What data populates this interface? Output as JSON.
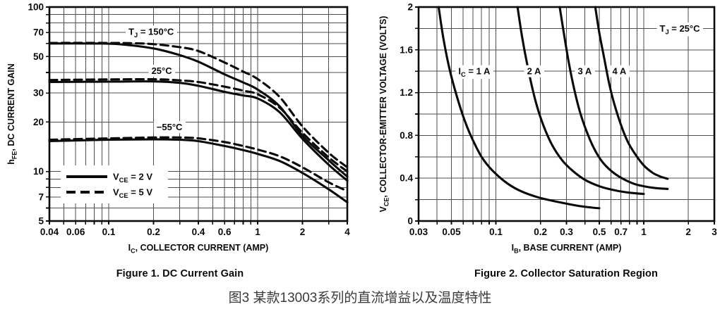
{
  "page": {
    "background": "#ffffff"
  },
  "colors": {
    "ink": "#0a0a0a",
    "grid": "#4d4d4d",
    "caption_text": "#3b3b3b",
    "label_bg": "#ffffff"
  },
  "captions": {
    "main": "图3 某款13003系列的直流增益以及温度特性"
  },
  "chart_data": [
    {
      "id": "fig1",
      "type": "line",
      "title": "Figure 1. DC Current Gain",
      "xlabel": "I_{C}, COLLECTOR CURRENT (AMP)",
      "ylabel": "h_{FE}, DC CURRENT GAIN",
      "x_scale": "log",
      "y_scale": "log",
      "xlim": [
        0.04,
        4
      ],
      "ylim": [
        5,
        100
      ],
      "grid": true,
      "x_ticks": [
        {
          "v": 0.04,
          "label": "0.04"
        },
        {
          "v": 0.06,
          "label": "0.06"
        },
        {
          "v": 0.1,
          "label": "0.1"
        },
        {
          "v": 0.2,
          "label": "0.2"
        },
        {
          "v": 0.4,
          "label": "0.4"
        },
        {
          "v": 0.6,
          "label": "0.6"
        },
        {
          "v": 1,
          "label": "1"
        },
        {
          "v": 2,
          "label": "2"
        },
        {
          "v": 4,
          "label": "4"
        }
      ],
      "y_ticks": [
        {
          "v": 100,
          "label": "100"
        },
        {
          "v": 70,
          "label": "70"
        },
        {
          "v": 50,
          "label": "50"
        },
        {
          "v": 30,
          "label": "30"
        },
        {
          "v": 20,
          "label": "20"
        },
        {
          "v": 10,
          "label": "10"
        },
        {
          "v": 7,
          "label": "7"
        },
        {
          "v": 5,
          "label": "5"
        }
      ],
      "grid_x": [
        0.04,
        0.05,
        0.06,
        0.07,
        0.08,
        0.09,
        0.1,
        0.2,
        0.3,
        0.4,
        0.5,
        0.6,
        0.7,
        0.8,
        0.9,
        1,
        2,
        3,
        4
      ],
      "grid_y": [
        5,
        6,
        7,
        8,
        9,
        10,
        20,
        30,
        40,
        50,
        60,
        70,
        80,
        90,
        100
      ],
      "series": [
        {
          "name": "TJ=150C VCE=2V",
          "style": "solid",
          "points": [
            [
              0.04,
              60
            ],
            [
              0.08,
              60
            ],
            [
              0.12,
              59.3
            ],
            [
              0.2,
              56
            ],
            [
              0.3,
              51
            ],
            [
              0.4,
              46.5
            ],
            [
              0.6,
              39
            ],
            [
              0.8,
              34.8
            ],
            [
              1,
              31.5
            ],
            [
              1.4,
              25
            ],
            [
              2,
              16.5
            ],
            [
              3,
              11.7
            ],
            [
              4,
              9.3
            ]
          ]
        },
        {
          "name": "TJ=150C VCE=5V",
          "style": "dashed",
          "points": [
            [
              0.04,
              60.5
            ],
            [
              0.1,
              60.5
            ],
            [
              0.15,
              60.2
            ],
            [
              0.2,
              59.5
            ],
            [
              0.3,
              57
            ],
            [
              0.4,
              54
            ],
            [
              0.6,
              46
            ],
            [
              0.8,
              40.5
            ],
            [
              1,
              36.5
            ],
            [
              1.4,
              28.5
            ],
            [
              2,
              18.8
            ],
            [
              3,
              13
            ],
            [
              4,
              10.6
            ]
          ]
        },
        {
          "name": "TJ=25C VCE=2V",
          "style": "solid",
          "points": [
            [
              0.04,
              35
            ],
            [
              0.1,
              35.2
            ],
            [
              0.2,
              35.3
            ],
            [
              0.3,
              34.6
            ],
            [
              0.4,
              33.2
            ],
            [
              0.6,
              30.5
            ],
            [
              0.8,
              29
            ],
            [
              1,
              27.8
            ],
            [
              1.4,
              23
            ],
            [
              2,
              15.8
            ],
            [
              3,
              11
            ],
            [
              4,
              8.8
            ]
          ]
        },
        {
          "name": "TJ=25C VCE=5V",
          "style": "dashed",
          "points": [
            [
              0.04,
              36
            ],
            [
              0.1,
              36.3
            ],
            [
              0.2,
              36.4
            ],
            [
              0.3,
              35.8
            ],
            [
              0.4,
              35
            ],
            [
              0.6,
              32.8
            ],
            [
              0.8,
              31
            ],
            [
              1,
              29.5
            ],
            [
              1.4,
              24.5
            ],
            [
              2,
              17.2
            ],
            [
              3,
              12.2
            ],
            [
              4,
              10
            ]
          ]
        },
        {
          "name": "TJ=-55C VCE=2V",
          "style": "solid",
          "points": [
            [
              0.04,
              15.3
            ],
            [
              0.1,
              15.6
            ],
            [
              0.2,
              15.7
            ],
            [
              0.3,
              15.6
            ],
            [
              0.4,
              15.3
            ],
            [
              0.6,
              14.3
            ],
            [
              0.8,
              13.5
            ],
            [
              1,
              12.8
            ],
            [
              1.4,
              11.6
            ],
            [
              2,
              9.8
            ],
            [
              3,
              7.8
            ],
            [
              4,
              6.5
            ]
          ]
        },
        {
          "name": "TJ=-55C VCE=5V",
          "style": "dashed",
          "points": [
            [
              0.04,
              15.6
            ],
            [
              0.1,
              15.9
            ],
            [
              0.2,
              16.1
            ],
            [
              0.3,
              16.1
            ],
            [
              0.4,
              15.9
            ],
            [
              0.6,
              15.1
            ],
            [
              0.8,
              14.3
            ],
            [
              1,
              13.6
            ],
            [
              1.4,
              12.4
            ],
            [
              2,
              10.6
            ],
            [
              3,
              8.6
            ],
            [
              4,
              7.6
            ]
          ]
        }
      ],
      "annotations": [
        {
          "text": "T_{J} = 150°C",
          "x": 0.193,
          "y": 71
        },
        {
          "text": "25°C",
          "x": 0.227,
          "y": 41
        },
        {
          "text": "−55°C",
          "x": 0.256,
          "y": 18.6
        }
      ],
      "legend": {
        "position": "lower-left",
        "entries": [
          {
            "label": "V_{CE} = 2 V",
            "style": "solid"
          },
          {
            "label": "V_{CE} = 5 V",
            "style": "dashed"
          }
        ]
      }
    },
    {
      "id": "fig2",
      "type": "line",
      "title": "Figure 2. Collector Saturation Region",
      "xlabel": "I_{B}, BASE CURRENT (AMP)",
      "ylabel": "V_{CE}, COLLECTOR-EMITTER VOLTAGE (VOLTS)",
      "x_scale": "log",
      "y_scale": "linear",
      "xlim": [
        0.03,
        3
      ],
      "ylim": [
        0,
        2
      ],
      "grid": true,
      "x_ticks": [
        {
          "v": 0.03,
          "label": "0.03"
        },
        {
          "v": 0.05,
          "label": "0.05"
        },
        {
          "v": 0.1,
          "label": "0.1"
        },
        {
          "v": 0.2,
          "label": "0.2"
        },
        {
          "v": 0.3,
          "label": "0.3"
        },
        {
          "v": 0.5,
          "label": "0.5"
        },
        {
          "v": 0.7,
          "label": "0.7"
        },
        {
          "v": 1,
          "label": "1"
        },
        {
          "v": 2,
          "label": "2"
        },
        {
          "v": 3,
          "label": "3"
        }
      ],
      "y_ticks": [
        {
          "v": 2,
          "label": "2"
        },
        {
          "v": 1.6,
          "label": "1.6"
        },
        {
          "v": 1.2,
          "label": "1.2"
        },
        {
          "v": 0.8,
          "label": "0.8"
        },
        {
          "v": 0.4,
          "label": "0.4"
        },
        {
          "v": 0,
          "label": "0"
        }
      ],
      "grid_x": [
        0.03,
        0.04,
        0.05,
        0.06,
        0.07,
        0.08,
        0.09,
        0.1,
        0.2,
        0.3,
        0.4,
        0.5,
        0.6,
        0.7,
        0.8,
        0.9,
        1,
        2,
        3
      ],
      "grid_y": [
        0,
        0.2,
        0.4,
        0.6,
        0.8,
        1.0,
        1.2,
        1.4,
        1.6,
        1.8,
        2.0
      ],
      "series": [
        {
          "name": "IC = 1 A",
          "style": "solid",
          "points": [
            [
              0.041,
              2
            ],
            [
              0.044,
              1.72
            ],
            [
              0.048,
              1.45
            ],
            [
              0.053,
              1.22
            ],
            [
              0.06,
              0.98
            ],
            [
              0.068,
              0.79
            ],
            [
              0.08,
              0.6
            ],
            [
              0.095,
              0.47
            ],
            [
              0.12,
              0.35
            ],
            [
              0.15,
              0.275
            ],
            [
              0.2,
              0.215
            ],
            [
              0.27,
              0.175
            ],
            [
              0.35,
              0.145
            ],
            [
              0.45,
              0.125
            ],
            [
              0.5,
              0.12
            ]
          ]
        },
        {
          "name": "IC = 2 A",
          "style": "solid",
          "points": [
            [
              0.14,
              2
            ],
            [
              0.15,
              1.73
            ],
            [
              0.162,
              1.48
            ],
            [
              0.175,
              1.26
            ],
            [
              0.19,
              1.07
            ],
            [
              0.21,
              0.89
            ],
            [
              0.24,
              0.71
            ],
            [
              0.28,
              0.57
            ],
            [
              0.33,
              0.47
            ],
            [
              0.4,
              0.385
            ],
            [
              0.5,
              0.325
            ],
            [
              0.6,
              0.295
            ],
            [
              0.75,
              0.27
            ],
            [
              0.9,
              0.258
            ],
            [
              1.0,
              0.253
            ]
          ]
        },
        {
          "name": "IC = 3 A",
          "style": "solid",
          "points": [
            [
              0.27,
              2
            ],
            [
              0.29,
              1.73
            ],
            [
              0.312,
              1.47
            ],
            [
              0.34,
              1.22
            ],
            [
              0.37,
              1.02
            ],
            [
              0.41,
              0.84
            ],
            [
              0.46,
              0.68
            ],
            [
              0.52,
              0.56
            ],
            [
              0.6,
              0.47
            ],
            [
              0.7,
              0.405
            ],
            [
              0.85,
              0.35
            ],
            [
              1.0,
              0.325
            ],
            [
              1.2,
              0.308
            ],
            [
              1.45,
              0.3
            ]
          ]
        },
        {
          "name": "IC = 4 A",
          "style": "solid",
          "points": [
            [
              0.47,
              2
            ],
            [
              0.5,
              1.76
            ],
            [
              0.54,
              1.52
            ],
            [
              0.58,
              1.3
            ],
            [
              0.63,
              1.1
            ],
            [
              0.7,
              0.9
            ],
            [
              0.78,
              0.74
            ],
            [
              0.88,
              0.62
            ],
            [
              1.0,
              0.52
            ],
            [
              1.15,
              0.45
            ],
            [
              1.3,
              0.415
            ],
            [
              1.45,
              0.395
            ]
          ]
        }
      ],
      "annotations": [
        {
          "text": "I_{C} = 1 A",
          "x": 0.0714,
          "y": 1.4
        },
        {
          "text": "2 A",
          "x": 0.181,
          "y": 1.4
        },
        {
          "text": "3 A",
          "x": 0.399,
          "y": 1.4
        },
        {
          "text": "4 A",
          "x": 0.683,
          "y": 1.4
        },
        {
          "text": "T_{J} = 25°C",
          "x": 1.75,
          "y": 1.8
        }
      ],
      "legend": null
    }
  ]
}
